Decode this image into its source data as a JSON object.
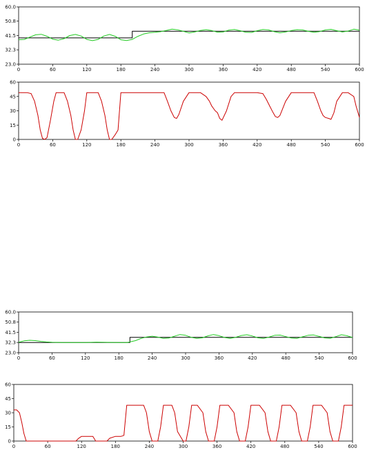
{
  "chart_data": [
    {
      "type": "line",
      "title": "",
      "xlabel": "",
      "ylabel": "",
      "xlim": [
        0,
        600
      ],
      "ylim": [
        23.0,
        60.0
      ],
      "x_ticks": [
        0,
        60,
        120,
        180,
        240,
        300,
        360,
        420,
        480,
        540,
        600
      ],
      "y_ticks": [
        "23.0",
        "32.3",
        "41.5",
        "50.8",
        "60.0"
      ],
      "grid": false,
      "series": [
        {
          "color": "#000000",
          "x": [
            0,
            200,
            200,
            600
          ],
          "y": [
            40.0,
            40.0,
            44.3,
            44.3
          ]
        },
        {
          "color": "#22cc22",
          "x": [
            0,
            10,
            20,
            30,
            40,
            50,
            60,
            70,
            80,
            90,
            100,
            110,
            120,
            130,
            140,
            150,
            160,
            170,
            180,
            190,
            200,
            210,
            220,
            230,
            240,
            250,
            260,
            270,
            280,
            290,
            300,
            310,
            320,
            330,
            340,
            350,
            360,
            370,
            380,
            390,
            400,
            410,
            420,
            430,
            440,
            450,
            460,
            470,
            480,
            490,
            500,
            510,
            520,
            530,
            540,
            550,
            560,
            570,
            580,
            590,
            600
          ],
          "y": [
            38.8,
            39.0,
            40.5,
            42.0,
            42.3,
            41.0,
            39.2,
            38.5,
            39.5,
            41.5,
            42.2,
            41.2,
            39.0,
            38.2,
            39.0,
            41.2,
            42.2,
            41.0,
            38.8,
            38.3,
            39.0,
            41.0,
            42.5,
            43.3,
            43.6,
            44.0,
            44.8,
            45.6,
            45.2,
            44.2,
            43.2,
            43.8,
            44.8,
            45.3,
            44.7,
            43.7,
            43.8,
            45.0,
            45.4,
            44.6,
            43.6,
            43.5,
            44.6,
            45.4,
            45.1,
            44.0,
            43.3,
            43.8,
            44.7,
            45.3,
            45.1,
            44.2,
            43.6,
            44.1,
            45.1,
            45.5,
            44.6,
            43.8,
            44.4,
            45.6,
            45.0
          ]
        }
      ]
    },
    {
      "type": "line",
      "title": "",
      "xlabel": "",
      "ylabel": "",
      "xlim": [
        0,
        600
      ],
      "ylim": [
        0,
        60
      ],
      "x_ticks": [
        0,
        60,
        120,
        180,
        240,
        300,
        360,
        420,
        480,
        540,
        600
      ],
      "y_ticks": [
        "0",
        "15",
        "30",
        "45",
        "60"
      ],
      "grid": false,
      "series": [
        {
          "color": "#cc0000",
          "x": [
            0,
            15,
            22,
            28,
            34,
            38,
            42,
            46,
            50,
            56,
            62,
            66,
            75,
            80,
            86,
            92,
            96,
            100,
            104,
            110,
            116,
            120,
            125,
            135,
            140,
            146,
            152,
            156,
            160,
            164,
            170,
            175,
            180,
            184,
            190,
            200,
            210,
            220,
            230,
            240,
            250,
            256,
            262,
            268,
            274,
            278,
            282,
            290,
            300,
            310,
            320,
            330,
            336,
            340,
            346,
            350,
            354,
            358,
            366,
            374,
            380,
            390,
            400,
            410,
            420,
            430,
            436,
            442,
            448,
            452,
            456,
            460,
            470,
            480,
            500,
            520,
            526,
            532,
            536,
            540,
            546,
            550,
            555,
            560,
            570,
            580,
            590,
            594,
            598,
            600
          ],
          "y": [
            49,
            49,
            48,
            40,
            25,
            10,
            1,
            0,
            2,
            20,
            40,
            49,
            49,
            49,
            40,
            25,
            10,
            0,
            0,
            10,
            30,
            49,
            49,
            49,
            49,
            40,
            25,
            10,
            0,
            0,
            5,
            10,
            49,
            49,
            49,
            49,
            49,
            49,
            49,
            49,
            49,
            49,
            40,
            30,
            23,
            22,
            26,
            40,
            49,
            49,
            49,
            45,
            40,
            35,
            30,
            28,
            22,
            20,
            30,
            45,
            49,
            49,
            49,
            49,
            49,
            48,
            42,
            35,
            28,
            24,
            23,
            25,
            40,
            49,
            49,
            49,
            40,
            30,
            25,
            23,
            22,
            21,
            28,
            40,
            49,
            49,
            45,
            35,
            27,
            23
          ]
        }
      ]
    },
    {
      "type": "line",
      "title": "",
      "xlabel": "",
      "ylabel": "",
      "xlim": [
        0,
        600
      ],
      "ylim": [
        23.0,
        60.0
      ],
      "x_ticks": [
        0,
        60,
        120,
        180,
        240,
        300,
        360,
        420,
        480,
        540,
        600
      ],
      "y_ticks": [
        "23.0",
        "32.3",
        "41.5",
        "50.8",
        "60.0"
      ],
      "grid": false,
      "series": [
        {
          "color": "#000000",
          "x": [
            0,
            200,
            200,
            600
          ],
          "y": [
            32.3,
            32.3,
            37.0,
            37.0
          ]
        },
        {
          "color": "#22cc22",
          "x": [
            0,
            10,
            20,
            30,
            40,
            50,
            60,
            80,
            100,
            120,
            140,
            160,
            180,
            195,
            200,
            210,
            220,
            230,
            240,
            250,
            260,
            270,
            280,
            290,
            300,
            310,
            320,
            330,
            340,
            350,
            360,
            370,
            380,
            390,
            400,
            410,
            420,
            430,
            440,
            450,
            460,
            470,
            480,
            490,
            500,
            510,
            520,
            530,
            540,
            550,
            560,
            570,
            580,
            590,
            600
          ],
          "y": [
            32.5,
            33.8,
            34.3,
            34.0,
            33.3,
            32.8,
            32.5,
            32.3,
            32.3,
            32.3,
            32.6,
            32.4,
            32.3,
            32.3,
            32.8,
            34.0,
            36.0,
            37.3,
            38.0,
            37.2,
            36.0,
            36.3,
            38.0,
            39.5,
            38.8,
            37.0,
            36.0,
            36.5,
            38.3,
            39.5,
            38.5,
            36.8,
            36.0,
            37.0,
            38.6,
            39.3,
            38.2,
            36.5,
            36.0,
            37.2,
            38.8,
            39.0,
            37.6,
            36.3,
            36.0,
            37.4,
            38.8,
            39.1,
            37.8,
            36.4,
            36.1,
            37.6,
            39.3,
            38.4,
            36.8
          ]
        }
      ]
    },
    {
      "type": "line",
      "title": "",
      "xlabel": "",
      "ylabel": "",
      "xlim": [
        0,
        600
      ],
      "ylim": [
        0,
        60
      ],
      "x_ticks": [
        0,
        60,
        120,
        180,
        240,
        300,
        360,
        420,
        480,
        540,
        600
      ],
      "y_ticks": [
        "0",
        "15",
        "30",
        "45",
        "60"
      ],
      "grid": false,
      "series": [
        {
          "color": "#cc0000",
          "x": [
            0,
            5,
            10,
            14,
            18,
            22,
            100,
            110,
            115,
            120,
            125,
            140,
            145,
            150,
            155,
            165,
            170,
            180,
            190,
            195,
            200,
            230,
            235,
            240,
            245,
            250,
            255,
            260,
            265,
            280,
            285,
            290,
            300,
            305,
            310,
            315,
            320,
            325,
            335,
            340,
            345,
            355,
            360,
            365,
            370,
            375,
            380,
            390,
            395,
            400,
            410,
            415,
            420,
            425,
            430,
            435,
            445,
            450,
            455,
            465,
            470,
            475,
            480,
            485,
            490,
            500,
            505,
            510,
            520,
            525,
            530,
            535,
            540,
            545,
            555,
            560,
            565,
            575,
            580,
            585,
            590,
            595,
            600
          ],
          "y": [
            33,
            33,
            30,
            20,
            8,
            0,
            0,
            0,
            3,
            5,
            5,
            5,
            0,
            0,
            0,
            0,
            3,
            5,
            5,
            6,
            38,
            38,
            30,
            10,
            0,
            0,
            0,
            15,
            38,
            38,
            30,
            10,
            0,
            0,
            15,
            38,
            38,
            38,
            30,
            10,
            0,
            0,
            15,
            38,
            38,
            38,
            38,
            30,
            10,
            0,
            0,
            15,
            38,
            38,
            38,
            38,
            30,
            10,
            0,
            0,
            15,
            38,
            38,
            38,
            38,
            30,
            10,
            0,
            0,
            15,
            38,
            38,
            38,
            38,
            30,
            10,
            0,
            0,
            15,
            38,
            38,
            38,
            38
          ]
        }
      ]
    }
  ]
}
